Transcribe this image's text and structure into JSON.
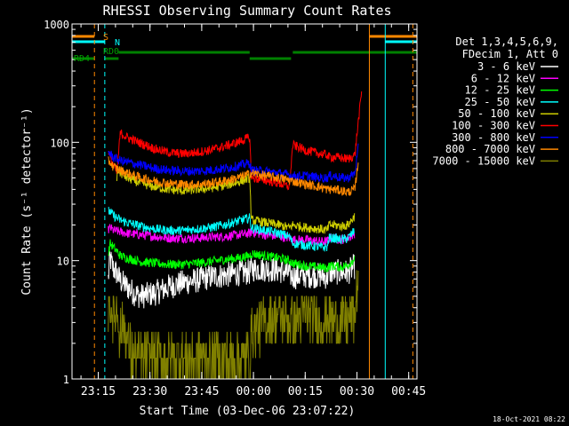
{
  "chart_data": {
    "type": "line",
    "title": "RHESSI Observing Summary Count Rates",
    "xlabel": "Start Time (03-Dec-06 23:07:22)",
    "ylabel": "Count Rate (s⁻¹ detector⁻¹)",
    "yscale": "log",
    "ylim": [
      1,
      1000
    ],
    "xlim_minutes": [
      0,
      100
    ],
    "x_ticks": [
      {
        "minute": 7.6,
        "label": "23:15"
      },
      {
        "minute": 22.6,
        "label": "23:30"
      },
      {
        "minute": 37.6,
        "label": "23:45"
      },
      {
        "minute": 52.6,
        "label": "00:00"
      },
      {
        "minute": 67.6,
        "label": "00:15"
      },
      {
        "minute": 82.6,
        "label": "00:30"
      },
      {
        "minute": 97.6,
        "label": "00:45"
      }
    ],
    "y_ticks": [
      {
        "value": 1,
        "label": "1"
      },
      {
        "value": 10,
        "label": "10"
      },
      {
        "value": 100,
        "label": "100"
      },
      {
        "value": 1000,
        "label": "1000"
      }
    ],
    "legend": {
      "header": [
        "Det 1,3,4,5,6,9,",
        "FDecim 1, Att 0"
      ],
      "position": "right"
    },
    "series": [
      {
        "name": "3 - 6 keV",
        "color": "#ffffff",
        "x": [
          10.5,
          11,
          12,
          13,
          14,
          16,
          18,
          20,
          24,
          28,
          32,
          36,
          40,
          44,
          48,
          51.5,
          52,
          56,
          60,
          63,
          64,
          68,
          72,
          74,
          74.5,
          76,
          78,
          80,
          82
        ],
        "y": [
          7.0,
          10.5,
          8.5,
          7.8,
          6.8,
          6.0,
          5.3,
          5.0,
          5.3,
          6.0,
          6.5,
          6.8,
          7.3,
          7.5,
          7.8,
          8.0,
          8.5,
          8.5,
          8.3,
          7.8,
          7.3,
          7.5,
          7.5,
          7.3,
          8.0,
          8.0,
          8.0,
          8.0,
          9.0
        ]
      },
      {
        "name": "6 - 12 keV",
        "color": "#ff00ff",
        "x": [
          10.5,
          11,
          12,
          14,
          16,
          20,
          24,
          28,
          32,
          36,
          40,
          44,
          48,
          51.5,
          52,
          56,
          60,
          63,
          64,
          68,
          72,
          74,
          74.5,
          76,
          78,
          80,
          82
        ],
        "y": [
          18,
          19,
          18,
          17.5,
          17,
          16.5,
          16,
          15.5,
          15.5,
          15.5,
          15.8,
          16,
          16.5,
          17,
          17.5,
          16.5,
          16,
          15.5,
          15,
          15,
          14.5,
          14.5,
          15.5,
          15.5,
          15,
          15.5,
          17
        ]
      },
      {
        "name": "12 - 25 keV",
        "color": "#00ff00",
        "x": [
          10.5,
          11,
          12,
          13,
          14,
          16,
          20,
          24,
          28,
          32,
          36,
          40,
          44,
          48,
          51.5,
          52,
          56,
          60,
          63,
          64,
          68,
          72,
          74,
          74.5,
          76,
          78,
          80,
          82
        ],
        "y": [
          11,
          14,
          13,
          12,
          11,
          10.5,
          9.8,
          9.5,
          9.3,
          9.3,
          9.5,
          9.8,
          10.2,
          10.5,
          11,
          11.5,
          11,
          10.5,
          10,
          9.5,
          9,
          8.8,
          8.6,
          9,
          9,
          8.8,
          9.2,
          10.5
        ]
      },
      {
        "name": "25 - 50 keV",
        "color": "#00ffff",
        "x": [
          10.5,
          11,
          12,
          14,
          16,
          20,
          24,
          28,
          32,
          36,
          40,
          44,
          48,
          51.5,
          52,
          56,
          60,
          63,
          64,
          68,
          72,
          74,
          74.5,
          76,
          78,
          80,
          82
        ],
        "y": [
          26,
          26,
          24,
          22,
          21,
          19.5,
          18.5,
          18,
          18,
          18.5,
          19,
          20,
          21.5,
          23,
          19,
          18,
          17,
          16,
          14,
          13.5,
          13,
          13,
          15.5,
          15.5,
          15,
          15.5,
          18
        ]
      },
      {
        "name": "50 - 100 keV",
        "color": "#cccc00",
        "x": [
          13,
          13.5,
          14,
          16,
          20,
          24,
          28,
          32,
          36,
          40,
          44,
          48,
          51.5,
          52,
          56,
          60,
          63,
          64,
          68,
          72,
          74,
          74.5,
          76,
          78,
          80,
          82
        ],
        "y": [
          50,
          60,
          55,
          50,
          45,
          42,
          40,
          39,
          40,
          41,
          43,
          46,
          50,
          22,
          21,
          20,
          19,
          20,
          19,
          18.5,
          18,
          20,
          20,
          19.5,
          20,
          24
        ]
      },
      {
        "name": "100 - 300 keV",
        "color": "#ff0000",
        "x": [
          10.5,
          11,
          12,
          13,
          14,
          16,
          20,
          24,
          28,
          32,
          36,
          40,
          44,
          48,
          51.5,
          52,
          56,
          60,
          63,
          64,
          68,
          72,
          74,
          74.5,
          76,
          78,
          80,
          82,
          83,
          84
        ],
        "y": [
          85,
          75,
          65,
          55,
          120,
          110,
          98,
          88,
          82,
          80,
          82,
          86,
          92,
          100,
          110,
          50,
          48,
          45,
          42,
          95,
          85,
          80,
          78,
          75,
          75,
          74,
          72,
          78,
          150,
          270
        ]
      },
      {
        "name": "300 - 800 keV",
        "color": "#0000ff",
        "x": [
          10.5,
          11,
          12,
          14,
          16,
          20,
          24,
          28,
          32,
          36,
          40,
          44,
          48,
          51.5,
          52,
          56,
          60,
          63,
          64,
          68,
          72,
          74,
          74.5,
          76,
          78,
          80,
          82,
          83
        ],
        "y": [
          85,
          80,
          75,
          70,
          68,
          64,
          60,
          58,
          57,
          57,
          58,
          60,
          63,
          67,
          58,
          57,
          55,
          53,
          52,
          52,
          50,
          50,
          52,
          52,
          50,
          50,
          55,
          90
        ]
      },
      {
        "name": "800 - 7000 keV",
        "color": "#ff8800",
        "x": [
          10.5,
          11,
          12,
          14,
          16,
          20,
          24,
          28,
          32,
          36,
          40,
          44,
          48,
          51.5,
          52,
          56,
          60,
          63,
          64,
          68,
          72,
          74,
          74.5,
          76,
          78,
          80,
          82,
          83
        ],
        "y": [
          70,
          68,
          62,
          58,
          55,
          50,
          47,
          45,
          44,
          44,
          45,
          47,
          50,
          54,
          55,
          52,
          50,
          48,
          47,
          44,
          42,
          40,
          40,
          40,
          39,
          38,
          40,
          70
        ]
      },
      {
        "name": "7000 - 15000 keV",
        "color": "#808000",
        "x": [
          10.5,
          11,
          12,
          13,
          14,
          15,
          16,
          18,
          20,
          22,
          24,
          28,
          32,
          36,
          40,
          44,
          48,
          51.5,
          52,
          54,
          56,
          58,
          60,
          62,
          64,
          66,
          68,
          70,
          72,
          74,
          76,
          78,
          80,
          82,
          83
        ],
        "y": [
          4.0,
          4.5,
          3.5,
          3.8,
          2.5,
          3.0,
          2.0,
          1.5,
          1.5,
          1.5,
          1.5,
          1.5,
          1.5,
          1.5,
          1.5,
          1.5,
          1.5,
          1.5,
          2.5,
          2.8,
          3.0,
          3.3,
          3.5,
          3.2,
          3.0,
          3.2,
          3.5,
          3.3,
          3.0,
          3.5,
          3.0,
          3.0,
          3.2,
          3.5,
          8.0
        ]
      }
    ],
    "flags": [
      {
        "label": "S",
        "color": "#ff8800"
      },
      {
        "label": "N",
        "color": "#00ffff"
      },
      {
        "label": "RD0",
        "color": "#008000"
      },
      {
        "label": "RD4",
        "color": "#008000"
      }
    ],
    "vertical_lines": [
      {
        "minute": 6.5,
        "color": "#ff8800",
        "style": "dashed"
      },
      {
        "minute": 9.5,
        "color": "#00ffff",
        "style": "dashed"
      },
      {
        "minute": 0,
        "color": "#00ffff",
        "style": "solid"
      },
      {
        "minute": 86.2,
        "color": "#ff8800",
        "style": "solid"
      },
      {
        "minute": 90.8,
        "color": "#00ffff",
        "style": "solid"
      },
      {
        "minute": 98.8,
        "color": "#ff8800",
        "style": "dashed"
      }
    ],
    "flag_bars": [
      {
        "row": "S",
        "color": "#ff8800",
        "ranges": [
          [
            0,
            6.5
          ],
          [
            86.2,
            100
          ]
        ]
      },
      {
        "row": "N",
        "color": "#00ffff",
        "ranges": [
          [
            0,
            9.5
          ],
          [
            90.8,
            100
          ]
        ]
      },
      {
        "row": "RD0",
        "color": "#008000",
        "ranges": [
          [
            13.5,
            51.5
          ],
          [
            64,
            100
          ]
        ]
      },
      {
        "row": "RD4",
        "color": "#008000",
        "ranges": [
          [
            0,
            6.5
          ],
          [
            9.5,
            13.5
          ],
          [
            51.5,
            63.5
          ]
        ]
      }
    ],
    "footer_date": "18-Oct-2021 08:22"
  }
}
